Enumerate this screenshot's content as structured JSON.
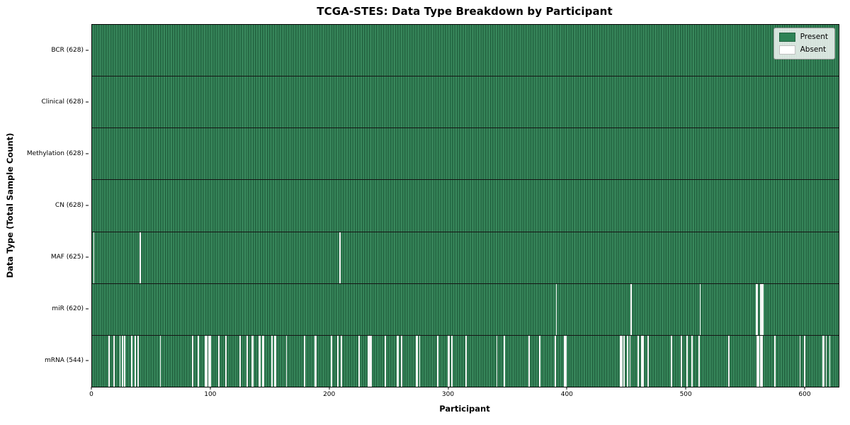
{
  "chart_data": {
    "type": "heatmap",
    "title": "TCGA-STES: Data Type Breakdown by Participant",
    "xlabel": "Participant",
    "ylabel": "Data Type (Total Sample Count)",
    "x_ticks": [
      0,
      100,
      200,
      300,
      400,
      500,
      600
    ],
    "x_range": [
      0,
      628
    ],
    "n_participants": 628,
    "grid": false,
    "legend_position": "upper right",
    "legend": [
      {
        "label": "Present",
        "color": "#2e8356"
      },
      {
        "label": "Absent",
        "color": "#ffffff"
      }
    ],
    "colors": {
      "present_fill": "#2f7d52",
      "present_fill_light": "#3c8c60",
      "present_edge": "#1f5c3b",
      "absent_fill": "#f7f7f7",
      "row_divider": "#151515",
      "plot_border": "#000000"
    },
    "rows": [
      {
        "data_type": "BCR",
        "label": "BCR (628)",
        "present_count": 628,
        "absent_participants": []
      },
      {
        "data_type": "Clinical",
        "label": "Clinical (628)",
        "present_count": 628,
        "absent_participants": []
      },
      {
        "data_type": "Methylation",
        "label": "Methylation (628)",
        "present_count": 628,
        "absent_participants": []
      },
      {
        "data_type": "CN",
        "label": "CN (628)",
        "present_count": 628,
        "absent_participants": []
      },
      {
        "data_type": "MAF",
        "label": "MAF (625)",
        "present_count": 625,
        "absent_participants": [
          1,
          40,
          208
        ]
      },
      {
        "data_type": "miR",
        "label": "miR (620)",
        "present_count": 620,
        "absent_participants": [
          390,
          453,
          511,
          558,
          559,
          562,
          563,
          564
        ]
      },
      {
        "data_type": "mRNA",
        "label": "mRNA (544)",
        "present_count": 544,
        "absent_participants": [
          14,
          18,
          23,
          25,
          27,
          33,
          36,
          38,
          57,
          84,
          89,
          95,
          96,
          98,
          99,
          106,
          112,
          124,
          130,
          134,
          135,
          140,
          141,
          143,
          144,
          151,
          153,
          154,
          163,
          178,
          187,
          188,
          201,
          206,
          209,
          224,
          232,
          233,
          234,
          246,
          256,
          257,
          260,
          272,
          273,
          275,
          290,
          299,
          300,
          302,
          314,
          340,
          346,
          367,
          376,
          389,
          397,
          398,
          444,
          445,
          447,
          450,
          452,
          459,
          462,
          463,
          467,
          487,
          495,
          500,
          504,
          510,
          535,
          559,
          560,
          562,
          563,
          574,
          595,
          599,
          614,
          615,
          617,
          620
        ]
      }
    ]
  }
}
